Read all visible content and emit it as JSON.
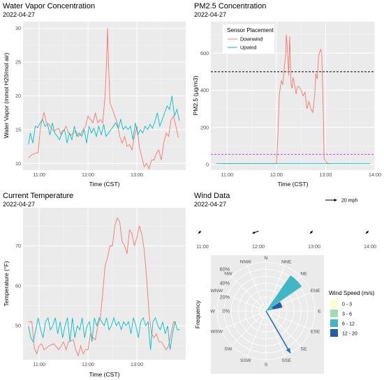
{
  "chart_data": [
    {
      "id": "water",
      "type": "line",
      "title": "Water Vapor Concentration",
      "subtitle": "2022-04-27",
      "xlabel": "Time (CST)",
      "ylabel": "Water Vapor (mmol H20/mol air)",
      "x_ticks": [
        "11:00",
        "12:00",
        "13:00"
      ],
      "xlim": [
        10.67,
        14.0
      ],
      "y_ticks": [
        10,
        15,
        20,
        25,
        30
      ],
      "ylim": [
        9.0,
        31.0
      ],
      "series": [
        {
          "color": "#f8766d",
          "x": [
            10.78,
            10.85,
            10.92,
            10.98,
            11.02,
            11.05,
            11.1,
            11.15,
            11.2,
            11.25,
            11.3,
            11.35,
            11.4,
            11.45,
            11.5,
            11.55,
            11.6,
            11.65,
            11.7,
            11.75,
            11.8,
            11.85,
            11.9,
            11.95,
            12.0,
            12.05,
            12.1,
            12.15,
            12.2,
            12.25,
            12.3,
            12.35,
            12.38,
            12.4,
            12.42,
            12.45,
            12.5,
            12.55,
            12.6,
            12.65,
            12.7,
            12.75,
            12.8,
            12.85,
            12.9,
            12.95,
            13.0,
            13.05,
            13.1,
            13.15,
            13.2,
            13.25,
            13.3,
            13.35,
            13.4,
            13.45,
            13.5,
            13.55,
            13.6,
            13.65,
            13.7,
            13.75,
            13.8,
            13.85
          ],
          "y": [
            10.8,
            11.3,
            11.5,
            11.6,
            15.0,
            16.2,
            17.5,
            16.0,
            15.8,
            15.2,
            14.8,
            15.0,
            15.2,
            14.2,
            14.8,
            15.5,
            14.5,
            14.2,
            14.5,
            14.8,
            14.0,
            14.3,
            15.0,
            15.5,
            17.0,
            16.5,
            16.0,
            17.5,
            16.0,
            16.5,
            16.0,
            20.0,
            25.0,
            30.0,
            25.0,
            19.0,
            18.0,
            17.0,
            16.0,
            14.0,
            13.0,
            14.0,
            12.5,
            12.8,
            12.0,
            14.0,
            15.5,
            12.5,
            11.0,
            9.5,
            10.0,
            9.2,
            10.5,
            10.5,
            11.5,
            12.0,
            10.5,
            13.0,
            14.5,
            14.0,
            16.5,
            17.0,
            15.5,
            13.8
          ]
        },
        {
          "color": "#00bfc4",
          "x": [
            10.78,
            10.82,
            10.87,
            10.92,
            10.97,
            11.02,
            11.07,
            11.12,
            11.17,
            11.22,
            11.27,
            11.32,
            11.37,
            11.42,
            11.47,
            11.52,
            11.57,
            11.62,
            11.67,
            11.72,
            11.77,
            11.82,
            11.87,
            11.92,
            11.97,
            12.02,
            12.07,
            12.12,
            12.17,
            12.22,
            12.27,
            12.32,
            12.37,
            12.42,
            12.47,
            12.52,
            12.57,
            12.62,
            12.67,
            12.72,
            12.77,
            12.82,
            12.87,
            12.92,
            12.97,
            13.02,
            13.07,
            13.12,
            13.17,
            13.22,
            13.27,
            13.32,
            13.37,
            13.42,
            13.47,
            13.52,
            13.57,
            13.62,
            13.67,
            13.72,
            13.77,
            13.82,
            13.87
          ],
          "y": [
            12.8,
            14.5,
            13.0,
            15.5,
            15.3,
            16.0,
            16.5,
            15.5,
            15.8,
            14.2,
            16.0,
            14.5,
            14.0,
            13.5,
            14.8,
            15.0,
            13.0,
            14.5,
            13.5,
            15.5,
            14.0,
            14.5,
            14.0,
            15.0,
            13.0,
            15.5,
            14.5,
            15.2,
            14.0,
            15.5,
            14.2,
            15.8,
            14.0,
            14.5,
            15.0,
            15.5,
            16.0,
            15.2,
            16.5,
            15.0,
            15.5,
            15.0,
            15.5,
            13.5,
            16.0,
            14.2,
            15.0,
            14.5,
            15.5,
            15.0,
            15.8,
            15.2,
            16.2,
            17.5,
            15.5,
            16.5,
            17.5,
            18.5,
            18.0,
            20.0,
            17.0,
            18.0,
            16.3
          ]
        }
      ]
    },
    {
      "id": "pm",
      "type": "line",
      "title": "PM2.5 Concentration",
      "subtitle": "2022-04-27",
      "xlabel": "Time (CST)",
      "ylabel": "PM2.5 (µg/m3)",
      "x_ticks": [
        "11:00",
        "12:00",
        "13:00",
        "14:00"
      ],
      "xlim": [
        10.67,
        14.0
      ],
      "y_ticks": [
        0,
        200,
        400,
        600
      ],
      "ylim": [
        -30,
        770
      ],
      "legend": {
        "title": "Sensor Placement",
        "position": "top-left",
        "entries": [
          "Downwind",
          "Upwind"
        ]
      },
      "hlines": [
        {
          "value": 500,
          "color": "#000000"
        },
        {
          "value": 55,
          "color": "#cc44ee"
        }
      ],
      "series": [
        {
          "name": "Downwind",
          "color": "#f8766d",
          "x": [
            10.9,
            11.5,
            12.0,
            12.03,
            12.06,
            12.1,
            12.13,
            12.16,
            12.19,
            12.2,
            12.22,
            12.25,
            12.27,
            12.29,
            12.3,
            12.32,
            12.34,
            12.37,
            12.4,
            12.43,
            12.46,
            12.5,
            12.54,
            12.58,
            12.62,
            12.66,
            12.7,
            12.74,
            12.78,
            12.8,
            12.83,
            12.86,
            12.9,
            12.92,
            12.95,
            12.97,
            13.0,
            13.02,
            13.05,
            13.1
          ],
          "y": [
            5,
            5,
            5,
            150,
            380,
            450,
            430,
            520,
            600,
            700,
            640,
            480,
            690,
            510,
            430,
            410,
            470,
            430,
            380,
            420,
            420,
            400,
            370,
            390,
            300,
            340,
            300,
            280,
            380,
            490,
            460,
            590,
            620,
            600,
            300,
            30,
            20,
            10,
            5,
            5
          ]
        },
        {
          "name": "Upwind",
          "color": "#00bfc4",
          "x": [
            10.78,
            11.5,
            12.5,
            13.0,
            13.5,
            13.9
          ],
          "y": [
            5,
            5,
            5,
            5,
            5,
            5
          ]
        }
      ]
    },
    {
      "id": "temp",
      "type": "line",
      "title": "Current Temperature",
      "subtitle": "2022-04-27",
      "xlabel": "Time (CST)",
      "ylabel": "Temperature (°F)",
      "x_ticks": [
        "11:00",
        "12:00",
        "13:00"
      ],
      "xlim": [
        10.67,
        14.0
      ],
      "y_ticks": [
        50,
        60,
        70
      ],
      "ylim": [
        41.5,
        79.5
      ],
      "series": [
        {
          "color": "#f8766d",
          "x": [
            10.78,
            10.85,
            10.9,
            10.95,
            11.0,
            11.05,
            11.1,
            11.2,
            11.3,
            11.4,
            11.5,
            11.55,
            11.6,
            11.7,
            11.75,
            11.8,
            11.85,
            11.9,
            11.95,
            12.0,
            12.05,
            12.1,
            12.15,
            12.2,
            12.25,
            12.3,
            12.35,
            12.4,
            12.45,
            12.5,
            12.55,
            12.6,
            12.65,
            12.7,
            12.75,
            12.8,
            12.85,
            12.9,
            12.95,
            13.0,
            13.05,
            13.1,
            13.15,
            13.2,
            13.25,
            13.3,
            13.35,
            13.4,
            13.45,
            13.5,
            13.55,
            13.6,
            13.65,
            13.7,
            13.75,
            13.8
          ],
          "y": [
            51,
            51,
            44.5,
            43,
            45,
            45.5,
            44,
            45,
            45.5,
            44,
            46,
            44,
            46,
            46.5,
            44,
            42.5,
            45,
            43,
            44,
            44,
            48,
            47,
            46.5,
            50,
            52,
            58,
            65,
            67,
            70,
            70,
            75,
            77,
            76,
            71,
            70,
            68,
            74,
            73,
            70,
            72,
            75,
            73,
            69,
            62,
            53,
            48,
            47,
            48,
            46,
            46,
            45,
            44,
            45,
            48,
            51,
            51
          ]
        },
        {
          "color": "#00bfc4",
          "x": [
            10.78,
            10.83,
            10.88,
            10.93,
            10.98,
            11.03,
            11.08,
            11.13,
            11.18,
            11.23,
            11.28,
            11.33,
            11.38,
            11.43,
            11.48,
            11.53,
            11.58,
            11.63,
            11.68,
            11.73,
            11.78,
            11.83,
            11.88,
            11.93,
            11.98,
            12.03,
            12.08,
            12.13,
            12.18,
            12.23,
            12.28,
            12.33,
            12.38,
            12.43,
            12.48,
            12.53,
            12.58,
            12.63,
            12.68,
            12.73,
            12.78,
            12.83,
            12.88,
            12.93,
            12.98,
            13.03,
            13.08,
            13.13,
            13.18,
            13.23,
            13.28,
            13.33,
            13.38,
            13.43,
            13.48,
            13.53,
            13.58,
            13.63,
            13.68,
            13.73,
            13.78,
            13.83,
            13.88
          ],
          "y": [
            50,
            47,
            46,
            49,
            52,
            49,
            47,
            51,
            52,
            49,
            50,
            52,
            48,
            51,
            47,
            50,
            52,
            46,
            52,
            47,
            50,
            49,
            52,
            47,
            50,
            51,
            46,
            52,
            50,
            52,
            51,
            50,
            52,
            49,
            50,
            52,
            50,
            51,
            49,
            51,
            50,
            51,
            48,
            52,
            50,
            47,
            51,
            52,
            50,
            51,
            44,
            51,
            52,
            50,
            49,
            51,
            48,
            50,
            44,
            48,
            51,
            49,
            49
          ]
        }
      ]
    },
    {
      "id": "wind",
      "type": "other",
      "title": "Wind Data",
      "subtitle": "2022-04-27",
      "scale_label": "20 mph",
      "time_ticks": [
        "11:00",
        "12:00",
        "13:00",
        "14:00"
      ],
      "wind_arrows": [
        {
          "hour": 10.95,
          "to_deg": 225,
          "speed_mph": 7
        },
        {
          "hour": 11.95,
          "to_deg": 250,
          "speed_mph": 12
        },
        {
          "hour": 12.95,
          "to_deg": 225,
          "speed_mph": 7
        },
        {
          "hour": 13.95,
          "to_deg": 225,
          "speed_mph": 7
        }
      ],
      "ylabel": "Frequency",
      "radial_ticks": [
        "0%",
        "20%",
        "40%",
        "60%"
      ],
      "radial_max": 70,
      "directions": [
        "N",
        "NNE",
        "NE",
        "ENE",
        "E",
        "ESE",
        "SE",
        "SSE",
        "S",
        "SSW",
        "SW",
        "WSW",
        "W",
        "WNW",
        "NW",
        "NNW"
      ],
      "legend": {
        "title": "Wind Speed (m/s)",
        "entries": [
          {
            "label": "0 - 3",
            "color": "#ffffcc"
          },
          {
            "label": "3 - 6",
            "color": "#a1dab4"
          },
          {
            "label": "6 - 12",
            "color": "#41b6c4"
          },
          {
            "label": "12 - 20",
            "color": "#225ea8"
          }
        ]
      },
      "rose_bars": [
        {
          "dir": "NE",
          "band": "6 - 12",
          "from": 0,
          "to": 62
        },
        {
          "dir": "ENE",
          "band": "6 - 12",
          "from": 0,
          "to": 10
        },
        {
          "dir": "ENE",
          "band": "12 - 20",
          "from": 10,
          "to": 24
        }
      ],
      "mean_arrow": {
        "to_deg": 150,
        "length_pct": 70,
        "color": "#1f6fbf"
      }
    }
  ]
}
